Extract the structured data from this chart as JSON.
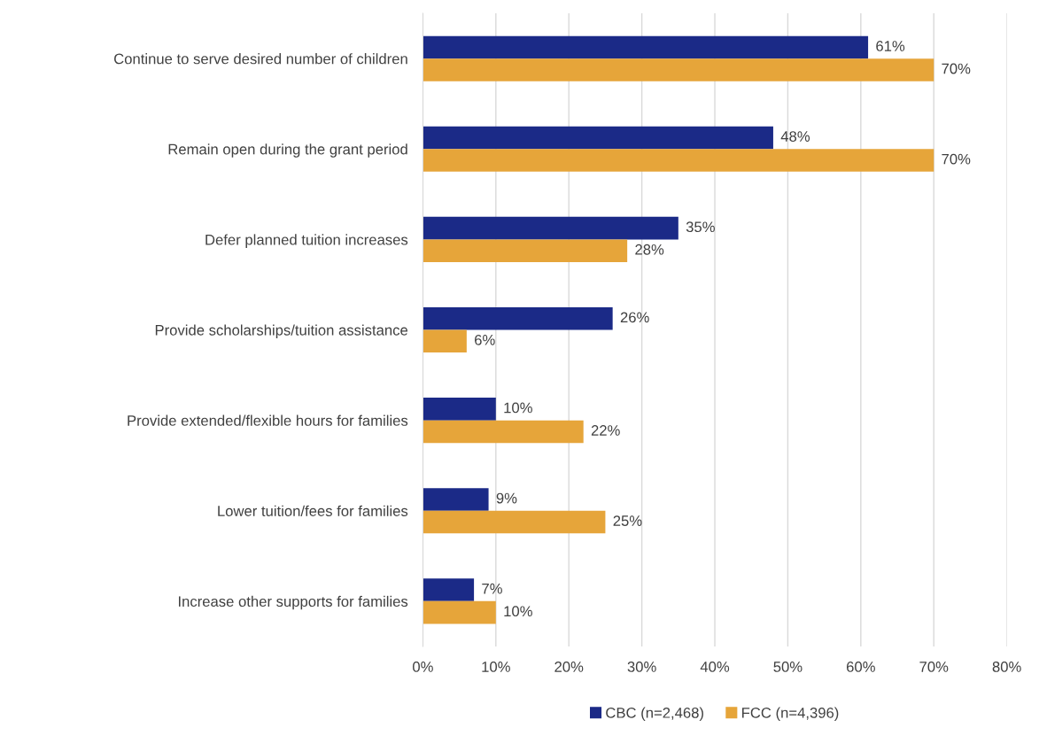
{
  "chart_data": {
    "type": "bar",
    "orientation": "horizontal",
    "categories": [
      "Continue to serve desired number of children",
      "Remain open during the grant period",
      "Defer planned tuition increases",
      "Provide scholarships/tuition assistance",
      "Provide extended/flexible hours for families",
      "Lower tuition/fees for families",
      "Increase other supports for families"
    ],
    "series": [
      {
        "name": "CBC (n=2,468)",
        "color": "#1b2a87",
        "values": [
          61,
          48,
          35,
          26,
          10,
          9,
          7
        ],
        "value_labels": [
          "61%",
          "48%",
          "35%",
          "26%",
          "10%",
          "9%",
          "7%"
        ]
      },
      {
        "name": "FCC (n=4,396)",
        "color": "#e6a53a",
        "values": [
          70,
          70,
          28,
          6,
          22,
          25,
          10
        ],
        "value_labels": [
          "70%",
          "70%",
          "28%",
          "6%",
          "22%",
          "25%",
          "10%"
        ]
      }
    ],
    "xlim": [
      0,
      80
    ],
    "xticks": [
      {
        "value": 0,
        "label": "0%"
      },
      {
        "value": 10,
        "label": "10%"
      },
      {
        "value": 20,
        "label": "20%"
      },
      {
        "value": 30,
        "label": "30%"
      },
      {
        "value": 40,
        "label": "40%"
      },
      {
        "value": 50,
        "label": "50%"
      },
      {
        "value": 60,
        "label": "60%"
      },
      {
        "value": 70,
        "label": "70%"
      },
      {
        "value": 80,
        "label": "80%"
      }
    ],
    "grid": "x",
    "legend": "bottom"
  }
}
